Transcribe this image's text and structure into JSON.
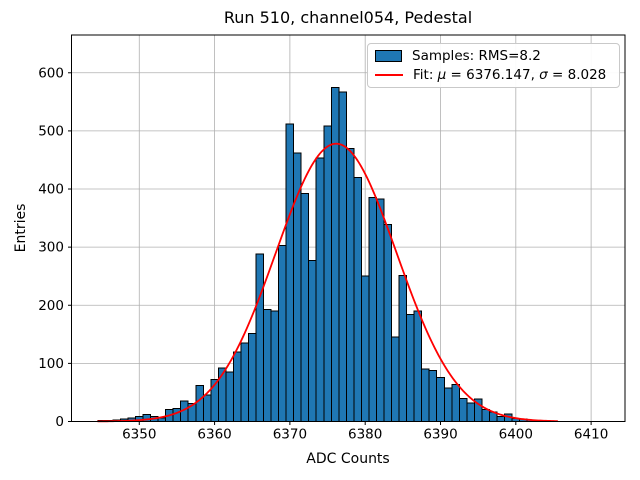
{
  "figure": {
    "background": "#ffffff"
  },
  "chart_data": {
    "type": "bar",
    "title": "Run 510, channel054, Pedestal",
    "xlabel": "ADC Counts",
    "ylabel": "Entries",
    "xlim": [
      6341.0,
      6414.5
    ],
    "ylim": [
      0,
      665
    ],
    "xticks": [
      6350,
      6360,
      6370,
      6380,
      6390,
      6400,
      6410
    ],
    "yticks": [
      0,
      100,
      200,
      300,
      400,
      500,
      600
    ],
    "grid": true,
    "grid_color": "#b0b0b0",
    "bar_color": "#1f77b4",
    "bar_edge_color": "#000000",
    "fit_color": "#ff0000",
    "bin_width": 1,
    "bin_centers": [
      6345,
      6346,
      6347,
      6348,
      6349,
      6350,
      6351,
      6352,
      6353,
      6354,
      6355,
      6356,
      6357,
      6358,
      6359,
      6360,
      6361,
      6362,
      6363,
      6364,
      6365,
      6366,
      6367,
      6368,
      6369,
      6370,
      6371,
      6372,
      6373,
      6374,
      6375,
      6376,
      6377,
      6378,
      6379,
      6380,
      6381,
      6382,
      6383,
      6384,
      6385,
      6386,
      6387,
      6388,
      6389,
      6390,
      6391,
      6392,
      6393,
      6394,
      6395,
      6396,
      6397,
      6398,
      6399,
      6400,
      6401,
      6402,
      6403,
      6404,
      6405
    ],
    "counts": [
      2,
      2,
      3,
      4,
      6,
      9,
      12,
      9,
      6,
      21,
      22,
      35,
      31,
      62,
      46,
      72,
      92,
      85,
      120,
      135,
      151,
      288,
      193,
      190,
      303,
      512,
      462,
      392,
      277,
      453,
      508,
      575,
      567,
      470,
      420,
      250,
      385,
      383,
      339,
      145,
      251,
      184,
      190,
      90,
      88,
      76,
      58,
      64,
      40,
      32,
      39,
      21,
      16,
      9,
      13,
      5,
      4,
      3,
      2,
      1,
      1
    ],
    "fit": {
      "type": "gaussian",
      "mu": 6376.147,
      "sigma": 8.028,
      "amplitude": 478,
      "x_range": [
        6344.5,
        6405.5
      ]
    },
    "legend_position": "upper right"
  },
  "legend": {
    "samples_label": "Samples: RMS=8.2",
    "fit_parts": {
      "prefix": "Fit: ",
      "mu_symbol": "μ",
      "mu_value": " = 6376.147, ",
      "sigma_symbol": "σ",
      "sigma_value": " = 8.028"
    }
  }
}
